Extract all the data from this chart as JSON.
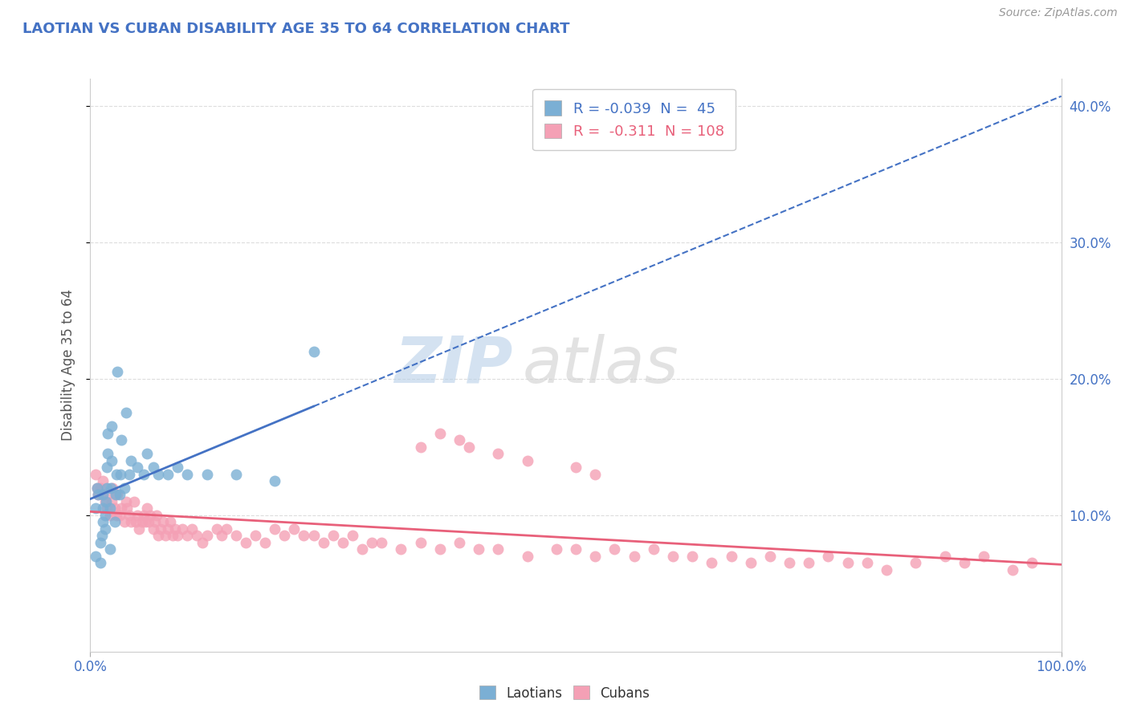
{
  "title": "LAOTIAN VS CUBAN DISABILITY AGE 35 TO 64 CORRELATION CHART",
  "source_text": "Source: ZipAtlas.com",
  "ylabel": "Disability Age 35 to 64",
  "xlim": [
    0.0,
    1.0
  ],
  "ylim": [
    0.0,
    0.42
  ],
  "legend_r_laotian": "-0.039",
  "legend_n_laotian": "45",
  "legend_r_cuban": "-0.311",
  "legend_n_cuban": "108",
  "laotian_color": "#7BAFD4",
  "cuban_color": "#F4A0B5",
  "laotian_line_color": "#4472C4",
  "cuban_line_color": "#E8607A",
  "title_color": "#4472C4",
  "source_color": "#999999",
  "tick_color": "#4472C4",
  "grid_color": "#DDDDDD",
  "background_color": "#FFFFFF",
  "laotian_x": [
    0.005,
    0.005,
    0.007,
    0.008,
    0.01,
    0.01,
    0.012,
    0.013,
    0.013,
    0.013,
    0.015,
    0.015,
    0.016,
    0.017,
    0.017,
    0.018,
    0.018,
    0.02,
    0.02,
    0.021,
    0.022,
    0.022,
    0.025,
    0.026,
    0.027,
    0.028,
    0.03,
    0.031,
    0.032,
    0.035,
    0.037,
    0.04,
    0.042,
    0.048,
    0.055,
    0.058,
    0.065,
    0.07,
    0.08,
    0.09,
    0.1,
    0.12,
    0.15,
    0.19,
    0.23
  ],
  "laotian_y": [
    0.07,
    0.105,
    0.12,
    0.115,
    0.065,
    0.08,
    0.085,
    0.095,
    0.105,
    0.115,
    0.09,
    0.1,
    0.11,
    0.12,
    0.135,
    0.145,
    0.16,
    0.075,
    0.105,
    0.12,
    0.14,
    0.165,
    0.095,
    0.115,
    0.13,
    0.205,
    0.115,
    0.13,
    0.155,
    0.12,
    0.175,
    0.13,
    0.14,
    0.135,
    0.13,
    0.145,
    0.135,
    0.13,
    0.13,
    0.135,
    0.13,
    0.13,
    0.13,
    0.125,
    0.22
  ],
  "cuban_x": [
    0.005,
    0.007,
    0.008,
    0.01,
    0.012,
    0.013,
    0.015,
    0.017,
    0.018,
    0.02,
    0.022,
    0.023,
    0.025,
    0.027,
    0.028,
    0.03,
    0.032,
    0.035,
    0.037,
    0.038,
    0.04,
    0.042,
    0.045,
    0.047,
    0.048,
    0.05,
    0.053,
    0.055,
    0.057,
    0.058,
    0.06,
    0.062,
    0.065,
    0.067,
    0.068,
    0.07,
    0.072,
    0.075,
    0.077,
    0.08,
    0.082,
    0.085,
    0.087,
    0.09,
    0.095,
    0.1,
    0.105,
    0.11,
    0.115,
    0.12,
    0.13,
    0.135,
    0.14,
    0.15,
    0.16,
    0.17,
    0.18,
    0.19,
    0.2,
    0.21,
    0.22,
    0.23,
    0.24,
    0.25,
    0.26,
    0.27,
    0.28,
    0.29,
    0.3,
    0.32,
    0.34,
    0.36,
    0.38,
    0.4,
    0.42,
    0.45,
    0.48,
    0.5,
    0.52,
    0.54,
    0.56,
    0.58,
    0.6,
    0.62,
    0.64,
    0.66,
    0.68,
    0.7,
    0.72,
    0.74,
    0.76,
    0.78,
    0.8,
    0.82,
    0.85,
    0.88,
    0.9,
    0.92,
    0.95,
    0.97,
    0.39,
    0.42,
    0.45,
    0.38,
    0.36,
    0.34,
    0.5,
    0.52
  ],
  "cuban_y": [
    0.13,
    0.12,
    0.115,
    0.12,
    0.115,
    0.125,
    0.11,
    0.105,
    0.115,
    0.1,
    0.11,
    0.12,
    0.105,
    0.1,
    0.115,
    0.1,
    0.105,
    0.095,
    0.11,
    0.105,
    0.1,
    0.095,
    0.11,
    0.095,
    0.1,
    0.09,
    0.095,
    0.1,
    0.095,
    0.105,
    0.095,
    0.1,
    0.09,
    0.095,
    0.1,
    0.085,
    0.09,
    0.095,
    0.085,
    0.09,
    0.095,
    0.085,
    0.09,
    0.085,
    0.09,
    0.085,
    0.09,
    0.085,
    0.08,
    0.085,
    0.09,
    0.085,
    0.09,
    0.085,
    0.08,
    0.085,
    0.08,
    0.09,
    0.085,
    0.09,
    0.085,
    0.085,
    0.08,
    0.085,
    0.08,
    0.085,
    0.075,
    0.08,
    0.08,
    0.075,
    0.08,
    0.075,
    0.08,
    0.075,
    0.075,
    0.07,
    0.075,
    0.075,
    0.07,
    0.075,
    0.07,
    0.075,
    0.07,
    0.07,
    0.065,
    0.07,
    0.065,
    0.07,
    0.065,
    0.065,
    0.07,
    0.065,
    0.065,
    0.06,
    0.065,
    0.07,
    0.065,
    0.07,
    0.06,
    0.065,
    0.15,
    0.145,
    0.14,
    0.155,
    0.16,
    0.15,
    0.135,
    0.13
  ],
  "watermark_zip_color": "#C8DCF0",
  "watermark_atlas_color": "#D8D8D8"
}
